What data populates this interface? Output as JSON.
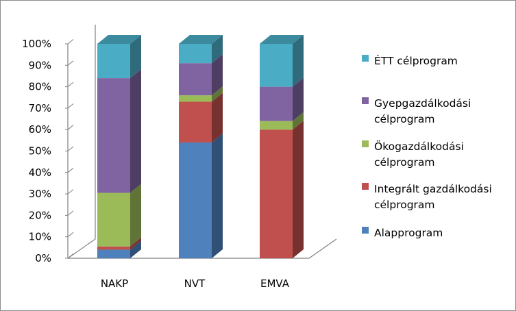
{
  "chart_data": {
    "type": "bar",
    "stacked": "percent",
    "three_d": true,
    "categories": [
      "NAKP",
      "NVT",
      "EMVA"
    ],
    "y_ticks": [
      "0%",
      "10%",
      "20%",
      "30%",
      "40%",
      "50%",
      "60%",
      "70%",
      "80%",
      "90%",
      "100%"
    ],
    "ylim": [
      0,
      100
    ],
    "grid": false,
    "legend_position": "right",
    "series": [
      {
        "name": "Alapprogram",
        "color": "#4f81bd",
        "values": [
          4,
          54,
          0
        ]
      },
      {
        "name": "Integrált gazdálkodási célprogram",
        "color": "#c0504d",
        "values": [
          1.5,
          19,
          60
        ]
      },
      {
        "name": "Ökogazdálkodási célprogram",
        "color": "#9bbb59",
        "values": [
          25,
          3,
          4
        ]
      },
      {
        "name": "Gyepgazdálkodási célprogram",
        "color": "#8064a2",
        "values": [
          53.5,
          15,
          16
        ]
      },
      {
        "name": "ÉTT célprogram",
        "color": "#4bacc6",
        "values": [
          16,
          9,
          20
        ]
      }
    ],
    "legend_lines": [
      [
        "ÉTT célprogram"
      ],
      [
        "Gyepgazdálkodási",
        "célprogram"
      ],
      [
        "Ökogazdálkodási",
        "célprogram"
      ],
      [
        "Integrált gazdálkodási",
        "célprogram"
      ],
      [
        "Alapprogram"
      ]
    ]
  }
}
